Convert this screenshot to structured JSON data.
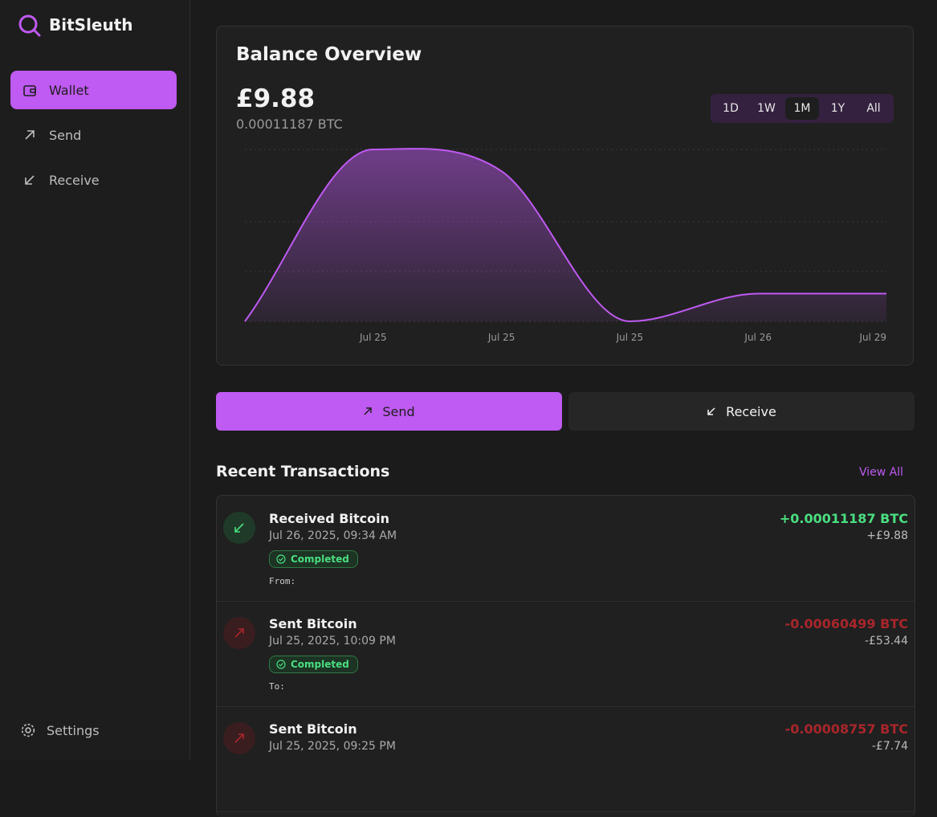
{
  "sidebar": {
    "brand": "BitSleuth",
    "nav": [
      "Wallet",
      "Send",
      "Receive"
    ],
    "active_nav": 0,
    "settings": "Settings"
  },
  "balance": {
    "title": "Balance Overview",
    "fiat": "£9.88",
    "btc": "0.00011187 BTC",
    "ranges": [
      "1D",
      "1W",
      "1M",
      "1Y",
      "All"
    ],
    "active_range": 2
  },
  "chart_data": {
    "type": "area",
    "categories": [
      null,
      "Jul 25",
      "Jul 25",
      "Jul 25",
      "Jul 26",
      "Jul 29"
    ],
    "values": [
      0,
      61.18,
      53.44,
      0,
      9.88,
      9.88
    ],
    "color": "#bf5af2",
    "ylim": [
      0,
      61.18
    ]
  },
  "actions": [
    "Send",
    "Receive"
  ],
  "transactions": {
    "title": "Recent Transactions",
    "view_all": "View All",
    "items": [
      {
        "title": "Received Bitcoin",
        "date": "Jul 26, 2025, 09:34 AM",
        "status": "Completed",
        "party": "From:",
        "amount_btc": "+0.00011187 BTC",
        "amount_fiat": "+£9.88"
      },
      {
        "title": "Sent Bitcoin",
        "date": "Jul 25, 2025, 10:09 PM",
        "status": "Completed",
        "party": "To:",
        "amount_btc": "-0.00060499 BTC",
        "amount_fiat": "-£53.44"
      },
      {
        "title": "Sent Bitcoin",
        "date": "Jul 25, 2025, 09:25 PM",
        "amount_btc": "-0.00008757 BTC",
        "amount_fiat": "-£7.74"
      }
    ]
  }
}
